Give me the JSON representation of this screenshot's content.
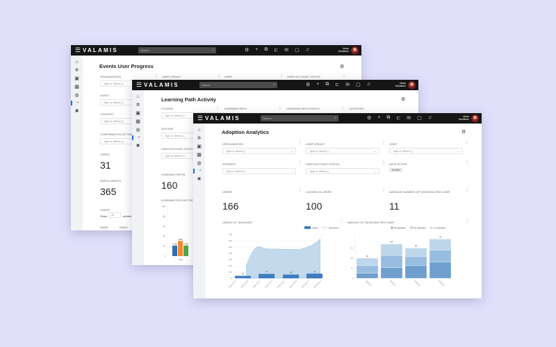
{
  "app": {
    "logo": "VALAMIS",
    "search_placeholder": "Search",
    "user_name": "Maria",
    "user_surname": "McAllister",
    "menu_icon": "hamburger-icon"
  },
  "header_icons": [
    "settings-icon",
    "plus-icon",
    "switch-icon",
    "cart-icon",
    "mail-icon",
    "bookmark-icon",
    "bell-icon"
  ],
  "sidebar_icons": [
    "home-icon",
    "asterisk-icon",
    "certificate-icon",
    "calendar-icon",
    "globe-icon",
    "analytics-icon",
    "puzzle-icon"
  ],
  "placeholder": "Type or Select [ ]",
  "w1": {
    "title": "Events User Progress",
    "filters": [
      "Organization",
      "User Group",
      "User",
      "User Account Status",
      "Event",
      "Country",
      "Confirmation of Part"
    ],
    "users_label": "Users",
    "users": "31",
    "enroll_label": "Enrollments",
    "enroll": "365",
    "table_label": "Users",
    "show": "Show",
    "entries_value": "25",
    "entries": "entries",
    "cols": [
      "Name",
      "Email"
    ]
  },
  "w2": {
    "title": "Learning Path Activity",
    "filters": [
      "Course",
      "Learning Path",
      "Learning Path Status",
      "Category",
      "Author",
      "User Account Status"
    ],
    "lp_label": "Learning Paths",
    "lp": "160",
    "activity_label": "Learning Path Activit"
  },
  "w3": {
    "title": "Adoption Analytics",
    "filters": [
      "Organization",
      "User Group",
      "User",
      "Interest",
      "User Account Status"
    ],
    "date_scope": "Date Scope",
    "date_chip": "No filter",
    "kpis": [
      {
        "label": "Users",
        "value": "166"
      },
      {
        "label": "Logged in users",
        "value": "100"
      },
      {
        "label": "Average number of sessions per user",
        "value": "11"
      }
    ],
    "chart1_title": "Users vs. Sessions",
    "chart2_title": "Amount of sessions per user"
  },
  "chart_data": [
    {
      "type": "bar",
      "title": "Users vs. Sessions",
      "legend": [
        "Users",
        "Sessions"
      ],
      "legend_position": "top-right",
      "x_ticks": [
        "2020-02-17",
        "2020-03-02",
        "2020-03-17",
        "2020-04-01",
        "2020-04-17",
        "2020-05-01",
        "2020-05-17",
        "2020-06-01"
      ],
      "y_ticks": [
        0,
        100,
        200,
        300,
        400,
        500,
        600,
        700
      ],
      "ylim": [
        0,
        700
      ],
      "series": [
        {
          "name": "Users",
          "type": "bar",
          "values": [
            40,
            70,
            60,
            75
          ],
          "labels": [
            "40",
            "70",
            "60",
            "75"
          ]
        },
        {
          "name": "Sessions",
          "type": "area",
          "values": [
            200,
            470,
            460,
            630
          ]
        }
      ],
      "colors": {
        "users": "#3f7cc0",
        "sessions": "#b9d3ea"
      }
    },
    {
      "type": "bar",
      "title": "Amount of sessions per user",
      "stacked": true,
      "legend": [
        ">6 sessions",
        "3-6 sessions",
        "1-2 sessions"
      ],
      "legend_position": "top",
      "categories": [
        "2020-02",
        "2020-03",
        "2020-04",
        "2020-05"
      ],
      "y_ticks": [
        0,
        20,
        40,
        60
      ],
      "ylim": [
        0,
        80
      ],
      "series": [
        {
          "name": ">6 sessions",
          "values": [
            10,
            21,
            25,
            32
          ]
        },
        {
          "name": "3-6 sessions",
          "values": [
            15,
            24,
            18,
            24
          ]
        },
        {
          "name": "1-2 sessions",
          "values": [
            15,
            23,
            17,
            22
          ]
        }
      ],
      "totals": [
        "40",
        "68",
        "60",
        "78"
      ],
      "colors": [
        "#6f9fcc",
        "#98bde0",
        "#bed6ea"
      ]
    },
    {
      "type": "bar",
      "title": "Learning Path Activity",
      "y_ticks": [
        "0",
        "2k",
        "4k",
        "6k",
        "8k",
        "10k"
      ],
      "ylim": [
        0,
        10000
      ],
      "categories": [
        "Aug"
      ],
      "values": [
        2100,
        3020,
        2100
      ],
      "labels": [
        "2.10k",
        "3.02k",
        "2.10k"
      ],
      "colors": [
        "#2f6fb5",
        "#f08a2c",
        "#4ea84a"
      ]
    }
  ]
}
